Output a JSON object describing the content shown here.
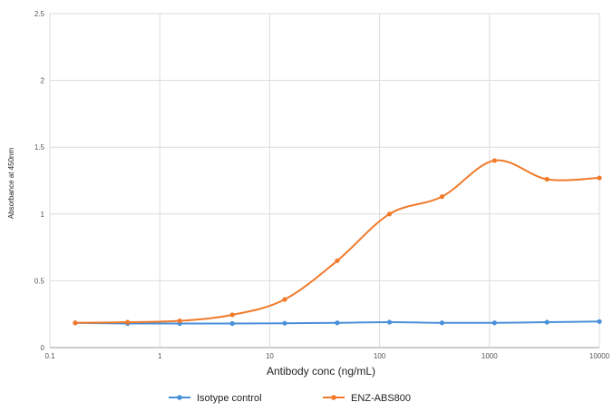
{
  "chart_data": {
    "type": "line",
    "title": "",
    "xlabel": "Antibody conc (ng/mL)",
    "ylabel": "Absorbance at 450nm",
    "xscale": "log",
    "xlim": [
      0.1,
      10000
    ],
    "ylim": [
      0,
      2.5
    ],
    "xticks": [
      "0.1",
      "1",
      "10",
      "100",
      "1000",
      "10000"
    ],
    "yticks": [
      "0",
      "0.5",
      "1",
      "1.5",
      "2",
      "2.5"
    ],
    "grid": true,
    "legend": "bottom",
    "series": [
      {
        "name": "Isotype control",
        "color": "#4a90d9",
        "x": [
          0.17,
          0.51,
          1.52,
          4.57,
          13.7,
          41.2,
          123,
          370,
          1111,
          3333,
          10000
        ],
        "y": [
          0.185,
          0.18,
          0.18,
          0.18,
          0.182,
          0.185,
          0.19,
          0.185,
          0.185,
          0.19,
          0.195
        ]
      },
      {
        "name": "ENZ-ABS800",
        "color": "#f07a2a",
        "x": [
          0.17,
          0.51,
          1.52,
          4.57,
          13.7,
          41.2,
          123,
          370,
          1111,
          3333,
          10000
        ],
        "y": [
          0.185,
          0.19,
          0.2,
          0.245,
          0.36,
          0.65,
          1.0,
          1.13,
          1.4,
          1.26,
          1.27
        ]
      }
    ]
  }
}
